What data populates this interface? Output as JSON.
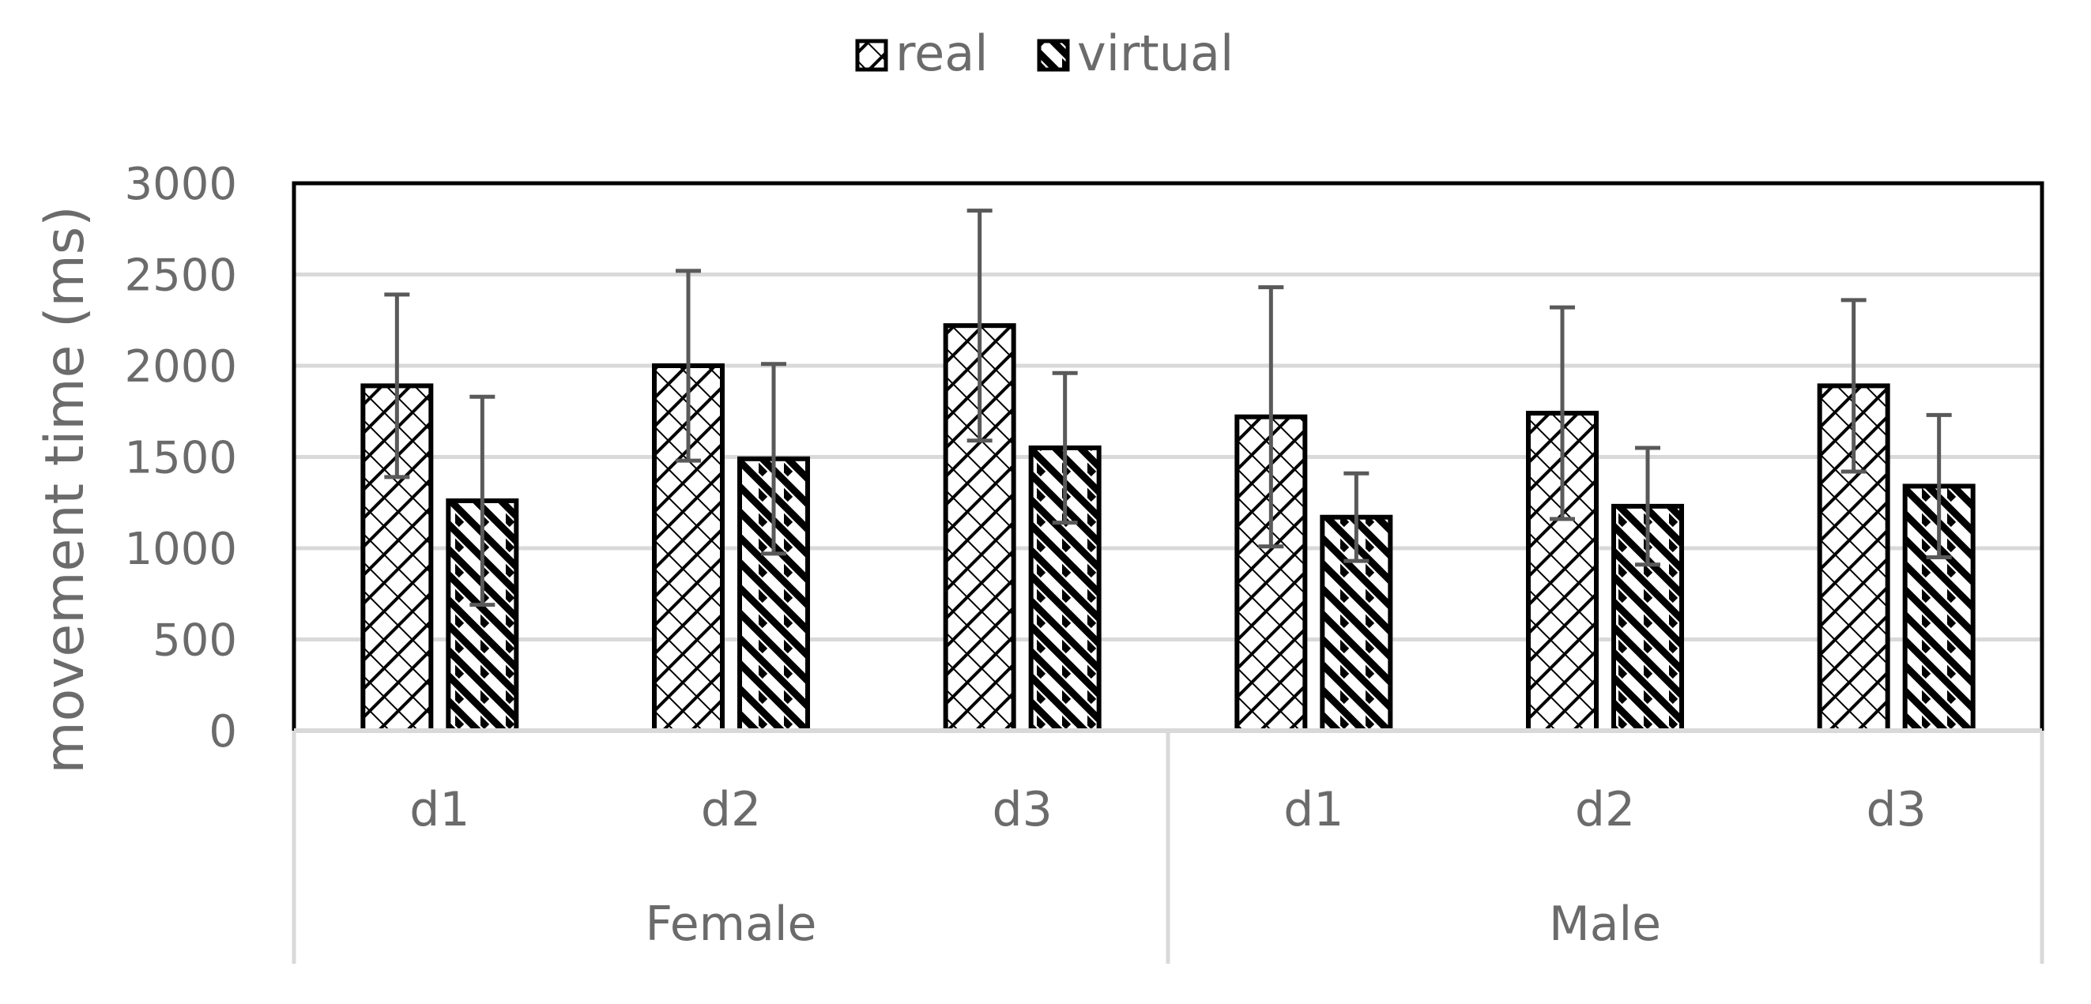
{
  "chart_data": {
    "type": "bar",
    "title": "",
    "xlabel": "",
    "ylabel": "movement time (ms)",
    "ylim": [
      0,
      3000
    ],
    "yticks": [
      0,
      500,
      1000,
      1500,
      2000,
      2500,
      3000
    ],
    "grid": true,
    "legend_position": "top",
    "groups": [
      {
        "label": "Female",
        "categories": [
          "d1",
          "d2",
          "d3"
        ]
      },
      {
        "label": "Male",
        "categories": [
          "d1",
          "d2",
          "d3"
        ]
      }
    ],
    "series": [
      {
        "name": "real",
        "pattern": "crosshatch",
        "values": [
          1890,
          2000,
          2220,
          1720,
          1740,
          1890
        ],
        "error": [
          500,
          520,
          630,
          710,
          580,
          470
        ]
      },
      {
        "name": "virtual",
        "pattern": "diagonal-stripes",
        "values": [
          1260,
          1490,
          1550,
          1170,
          1230,
          1340
        ],
        "error": [
          570,
          520,
          410,
          240,
          320,
          390
        ]
      }
    ]
  },
  "colors": {
    "bar_stroke": "#000000",
    "bar_fill": "#ffffff",
    "grid": "#d9d9d9",
    "error_bar": "#595959",
    "text": "#6b6b6b"
  }
}
